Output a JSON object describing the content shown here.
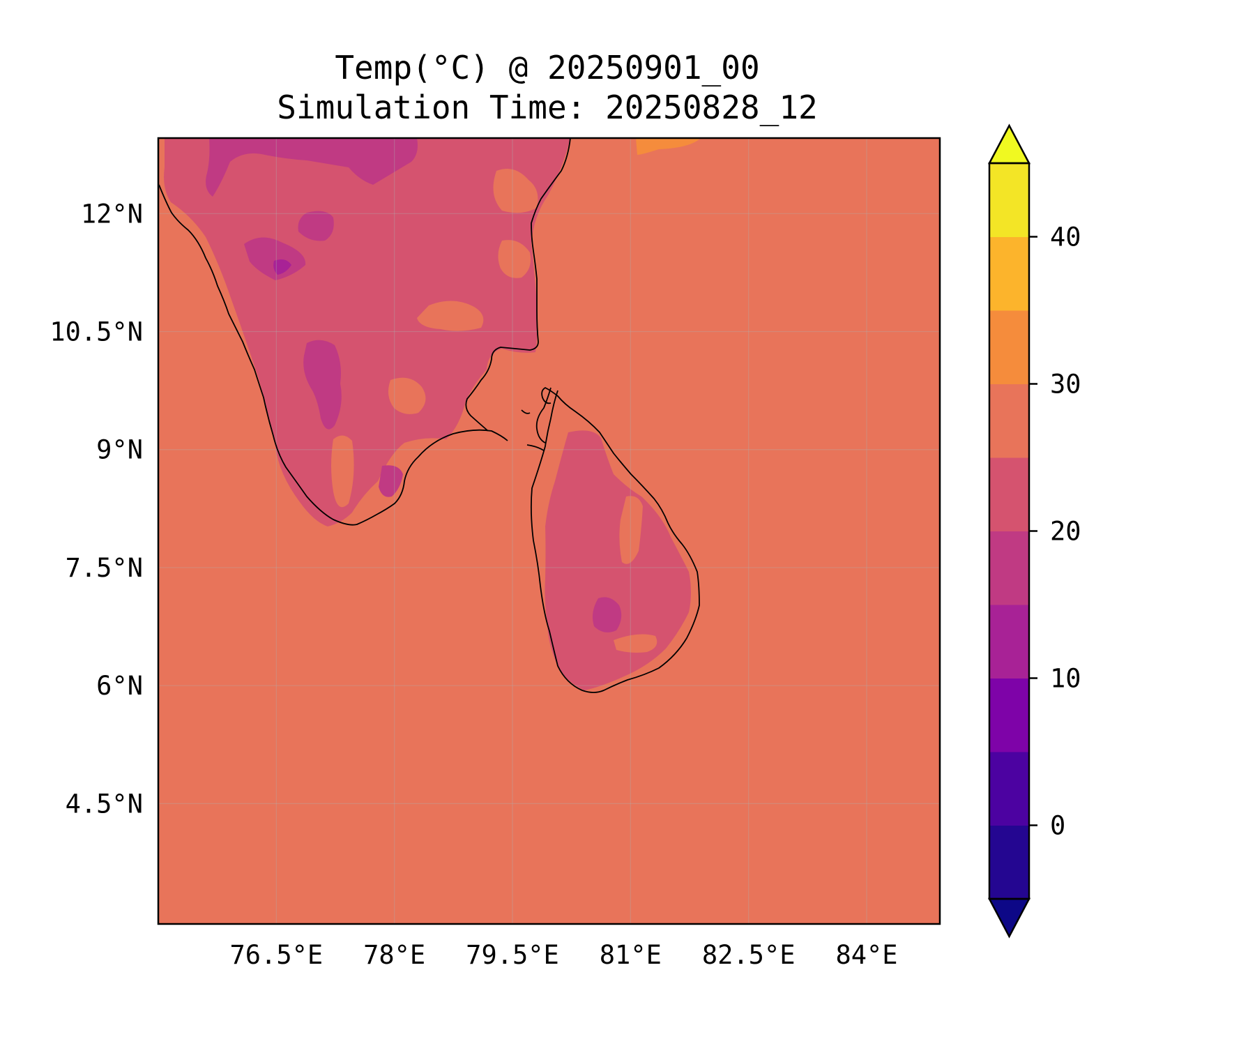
{
  "title": {
    "line1": "Temp(°C) @ 20250901_00",
    "line2": "Simulation Time: 20250828_12"
  },
  "map": {
    "projection": "PlateCarree",
    "lon_range": [
      75.0,
      84.93
    ],
    "lat_range": [
      2.97,
      12.96
    ],
    "gridlines": true,
    "coastlines": true,
    "field_variable": "Temperature",
    "field_unit": "°C",
    "x_ticks": [
      {
        "lon": 76.5,
        "label": "76.5°E"
      },
      {
        "lon": 78.0,
        "label": "78°E"
      },
      {
        "lon": 79.5,
        "label": "79.5°E"
      },
      {
        "lon": 81.0,
        "label": "81°E"
      },
      {
        "lon": 82.5,
        "label": "82.5°E"
      },
      {
        "lon": 84.0,
        "label": "84°E"
      }
    ],
    "y_ticks": [
      {
        "lat": 12.0,
        "label": "12°N"
      },
      {
        "lat": 10.5,
        "label": "10.5°N"
      },
      {
        "lat": 9.0,
        "label": "9°N"
      },
      {
        "lat": 7.5,
        "label": "7.5°N"
      },
      {
        "lat": 6.0,
        "label": "6°N"
      },
      {
        "lat": 4.5,
        "label": "4.5°N"
      }
    ],
    "ocean_level_range": [
      25,
      30
    ],
    "warm_patch_level_range": [
      30,
      35
    ]
  },
  "colorbar": {
    "colormap": "plasma",
    "extend": "both",
    "range": [
      -5,
      45
    ],
    "level_step": 5,
    "levels": [
      {
        "from": -5,
        "to": 0,
        "color": "#240691"
      },
      {
        "from": 0,
        "to": 5,
        "color": "#4c02a1"
      },
      {
        "from": 5,
        "to": 10,
        "color": "#7e03a8"
      },
      {
        "from": 10,
        "to": 15,
        "color": "#a82296"
      },
      {
        "from": 15,
        "to": 20,
        "color": "#c03a83"
      },
      {
        "from": 20,
        "to": 25,
        "color": "#d5536f"
      },
      {
        "from": 25,
        "to": 30,
        "color": "#e8745a"
      },
      {
        "from": 30,
        "to": 35,
        "color": "#f58c3c"
      },
      {
        "from": 35,
        "to": 40,
        "color": "#fcb42c"
      },
      {
        "from": 40,
        "to": 45,
        "color": "#f3e526"
      }
    ],
    "under_color": "#0d0887",
    "over_color": "#f0f921",
    "ticks": [
      {
        "value": 0,
        "label": "0"
      },
      {
        "value": 10,
        "label": "10"
      },
      {
        "value": 20,
        "label": "20"
      },
      {
        "value": 30,
        "label": "30"
      },
      {
        "value": 40,
        "label": "40"
      }
    ]
  }
}
